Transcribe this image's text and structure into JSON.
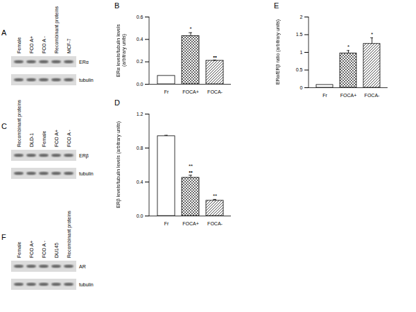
{
  "chart_data": [
    {
      "type": "bar",
      "title": "B",
      "y_label": "ERα levels/tubulin levels (arbitrary units)",
      "categories": [
        "Fr",
        "FOCA+",
        "FOCA-"
      ],
      "values": [
        0.075,
        0.43,
        0.21
      ],
      "errors": [
        null,
        0.03,
        0.005
      ],
      "annotations": [
        null,
        [
          "*"
        ],
        [
          "••"
        ]
      ],
      "ylim": [
        0,
        0.6
      ],
      "yticks": [
        {
          "value": 0,
          "label": "0.0"
        },
        {
          "value": 0.2,
          "label": "0.2"
        },
        {
          "value": 0.4,
          "label": "0.4"
        },
        {
          "value": 0.6,
          "label": "0.6"
        }
      ]
    },
    {
      "type": "bar",
      "title": "E",
      "y_label": "ERα/ERβ ratio (arbitrary units)",
      "categories": [
        "Fr",
        "FOCA+",
        "FOCA-"
      ],
      "values": [
        0.08,
        0.97,
        1.24
      ],
      "errors": [
        null,
        0.08,
        0.17
      ],
      "annotations": [
        null,
        [
          "*"
        ],
        [
          "*"
        ]
      ],
      "ylim": [
        0,
        2
      ],
      "yticks": [
        0,
        0.5,
        1,
        1.5,
        2
      ]
    },
    {
      "type": "bar",
      "title": "D",
      "y_label": "ERβ levels/tubulin levels (arbitrary units)",
      "categories": [
        "Fr",
        "FOCA+",
        "FOCA-"
      ],
      "values": [
        0.94,
        0.45,
        0.18
      ],
      "errors": [
        0.01,
        0.03,
        0.015
      ],
      "annotations": [
        null,
        [
          "**",
          "••"
        ],
        [
          "**"
        ]
      ],
      "ylim": [
        0,
        1.2
      ],
      "yticks": [
        {
          "value": 0,
          "label": "0.0"
        },
        {
          "value": 0.4,
          "label": "0.4"
        },
        {
          "value": 0.8,
          "label": "0.8"
        },
        {
          "value": 1.2,
          "label": "1.2"
        }
      ]
    }
  ],
  "blots": [
    {
      "title": "A",
      "lanes": [
        "Female",
        "FCO A+",
        "FCO A -",
        "Recombinant proteins",
        "MCF-7"
      ],
      "bands": [
        "ERα",
        "tubulin"
      ]
    },
    {
      "title": "C",
      "lanes": [
        "Recombinant proteins",
        "DLD-1",
        "Female",
        "FCO A+",
        "FCO A -"
      ],
      "bands": [
        "ERβ",
        "tubulin"
      ]
    },
    {
      "title": "F",
      "lanes": [
        "Female",
        "FCO A+",
        "FCO A -",
        "DU145",
        "Recombinant proteins"
      ],
      "bands": [
        "AR",
        "tubulin"
      ]
    }
  ]
}
